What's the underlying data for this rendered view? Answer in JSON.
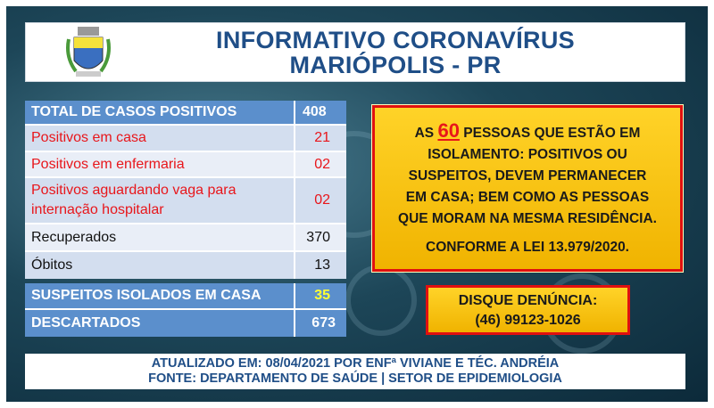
{
  "header": {
    "title_line1": "INFORMATIVO CORONAVÍRUS",
    "title_line2": "MARIÓPOLIS - PR"
  },
  "table": {
    "total": {
      "label": "TOTAL DE CASOS POSITIVOS",
      "value": "408"
    },
    "rows": [
      {
        "label": "Positivos em casa",
        "value": "21"
      },
      {
        "label": "Positivos em enfermaria",
        "value": "02"
      },
      {
        "label": "Positivos aguardando vaga para internação hospitalar",
        "value": "02"
      },
      {
        "label": "Recuperados",
        "value": "370"
      },
      {
        "label": "Óbitos",
        "value": "13"
      }
    ],
    "suspeitos": {
      "label": "SUSPEITOS ISOLADOS EM CASA",
      "value": "35"
    },
    "descartados": {
      "label": "DESCARTADOS",
      "value": "673"
    }
  },
  "notice": {
    "prefix": "AS",
    "count": "60",
    "text": "PESSOAS QUE ESTÃO EM ISOLAMENTO: POSITIVOS OU SUSPEITOS, DEVEM PERMANECER EM CASA; BEM COMO AS PESSOAS QUE MORAM NA MESMA RESIDÊNCIA.",
    "law": "CONFORME A LEI 13.979/2020."
  },
  "hotline": {
    "label": "DISQUE DENÚNCIA:",
    "phone": "(46) 99123-1026"
  },
  "footer": {
    "line1": "ATUALIZADO EM: 08/04/2021 POR ENFª VIVIANE E TÉC. ANDRÉIA",
    "line2": "FONTE: DEPARTAMENTO DE SAÚDE | SETOR DE EPIDEMIOLOGIA"
  },
  "colors": {
    "title": "#1f4e87",
    "table_header": "#5b8fcc",
    "highlight_red": "#e8161b",
    "notice_bg": "#ffd328",
    "suspeitos_value": "#ffff33"
  }
}
